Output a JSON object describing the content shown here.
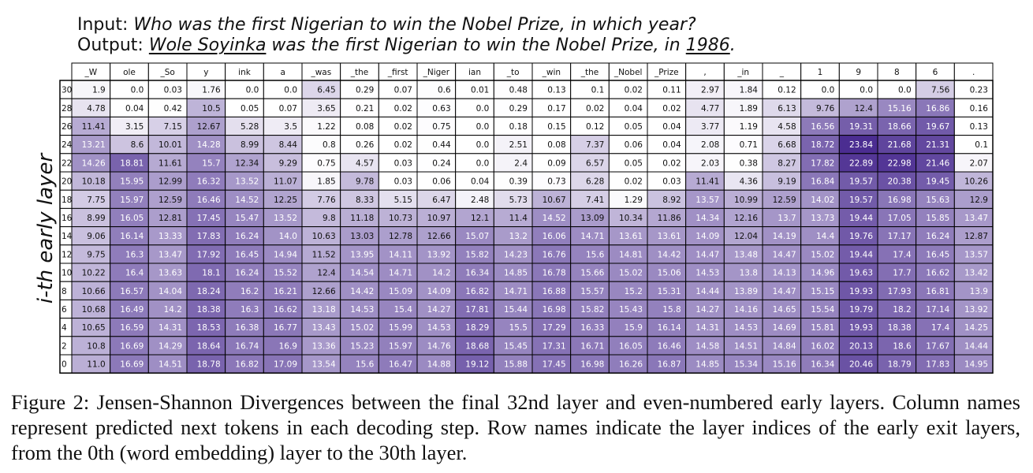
{
  "input": {
    "label": "Input:",
    "question": "Who was the first Nigerian to win the Nobel Prize, in which year?"
  },
  "output": {
    "label": "Output:",
    "name": "Wole Soyinka",
    "middle": "was the first Nigerian to win the Nobel Prize, in",
    "year": "1986",
    "end": "."
  },
  "ylabel": "i-th early layer",
  "caption": "Figure 2: Jensen-Shannon Divergences between the final 32nd layer and even-numbered early layers. Column names represent predicted next tokens in each decoding step. Row names indicate the layer indices of the early exit layers, from the 0th (word embedding) layer to the 30th layer.",
  "colors": {
    "low": "#ffffff",
    "high": "#4b2d91",
    "grid": "#000000"
  },
  "chart_data": {
    "type": "heatmap",
    "columns": [
      "_W",
      "ole",
      "_So",
      "y",
      "ink",
      "a",
      "_was",
      "_the",
      "_first",
      "_Niger",
      "ian",
      "_to",
      "_win",
      "_the",
      "_Nobel",
      "_Prize",
      ",",
      "_in",
      "_",
      "1",
      "9",
      "8",
      "6",
      "."
    ],
    "rows": [
      "30",
      "28",
      "26",
      "24",
      "22",
      "20",
      "18",
      "16",
      "14",
      "12",
      "10",
      "8",
      "6",
      "4",
      "2",
      "0"
    ],
    "values": [
      [
        "1.9",
        "0.0",
        "0.03",
        "1.76",
        "0.0",
        "0.0",
        "6.45",
        "0.29",
        "0.07",
        "0.6",
        "0.01",
        "0.48",
        "0.13",
        "0.1",
        "0.02",
        "0.11",
        "2.97",
        "1.84",
        "0.12",
        "0.0",
        "0.0",
        "0.0",
        "7.56",
        "0.23"
      ],
      [
        "4.78",
        "0.04",
        "0.42",
        "10.5",
        "0.05",
        "0.07",
        "3.65",
        "0.21",
        "0.02",
        "0.63",
        "0.0",
        "0.29",
        "0.17",
        "0.02",
        "0.04",
        "0.02",
        "4.77",
        "1.89",
        "6.13",
        "9.76",
        "12.4",
        "15.16",
        "16.86",
        "0.16"
      ],
      [
        "11.41",
        "3.15",
        "7.15",
        "12.67",
        "5.28",
        "3.5",
        "1.22",
        "0.08",
        "0.02",
        "0.75",
        "0.0",
        "0.18",
        "0.15",
        "0.12",
        "0.05",
        "0.04",
        "3.77",
        "1.19",
        "4.58",
        "16.56",
        "19.31",
        "18.66",
        "19.67",
        "0.13"
      ],
      [
        "13.21",
        "8.6",
        "10.01",
        "14.28",
        "8.99",
        "8.44",
        "0.8",
        "0.26",
        "0.02",
        "0.44",
        "0.0",
        "2.51",
        "0.08",
        "7.37",
        "0.06",
        "0.04",
        "2.08",
        "0.71",
        "6.68",
        "18.72",
        "23.84",
        "21.68",
        "21.31",
        "0.1"
      ],
      [
        "14.26",
        "18.81",
        "11.61",
        "15.7",
        "12.34",
        "9.29",
        "0.75",
        "4.57",
        "0.03",
        "0.24",
        "0.0",
        "2.4",
        "0.09",
        "6.57",
        "0.05",
        "0.02",
        "2.03",
        "0.38",
        "8.27",
        "17.82",
        "22.89",
        "22.98",
        "21.46",
        "2.07"
      ],
      [
        "10.18",
        "15.95",
        "12.99",
        "16.32",
        "13.52",
        "11.07",
        "1.85",
        "9.78",
        "0.03",
        "0.06",
        "0.04",
        "0.39",
        "0.73",
        "6.28",
        "0.02",
        "0.03",
        "11.41",
        "4.36",
        "9.19",
        "16.84",
        "19.57",
        "20.38",
        "19.45",
        "10.26"
      ],
      [
        "7.75",
        "15.97",
        "12.59",
        "16.46",
        "14.52",
        "12.25",
        "7.76",
        "8.33",
        "5.15",
        "6.47",
        "2.48",
        "5.73",
        "10.67",
        "7.41",
        "1.29",
        "8.92",
        "13.57",
        "10.99",
        "12.59",
        "14.02",
        "19.57",
        "16.98",
        "15.63",
        "12.9"
      ],
      [
        "8.99",
        "16.05",
        "12.81",
        "17.45",
        "15.47",
        "13.52",
        "9.8",
        "11.18",
        "10.73",
        "10.97",
        "12.1",
        "11.4",
        "14.52",
        "13.09",
        "10.34",
        "11.86",
        "14.34",
        "12.16",
        "13.7",
        "13.73",
        "19.44",
        "17.05",
        "15.85",
        "13.47"
      ],
      [
        "9.06",
        "16.14",
        "13.33",
        "17.83",
        "16.24",
        "14.0",
        "10.63",
        "13.03",
        "12.78",
        "12.66",
        "15.07",
        "13.2",
        "16.06",
        "14.71",
        "13.61",
        "13.61",
        "14.09",
        "12.04",
        "14.19",
        "14.4",
        "19.76",
        "17.17",
        "16.24",
        "12.87"
      ],
      [
        "9.75",
        "16.3",
        "13.47",
        "17.92",
        "16.45",
        "14.94",
        "11.52",
        "13.95",
        "14.11",
        "13.92",
        "15.82",
        "14.23",
        "16.76",
        "15.6",
        "14.81",
        "14.42",
        "14.47",
        "13.48",
        "14.47",
        "15.02",
        "19.44",
        "17.4",
        "16.45",
        "13.57"
      ],
      [
        "10.22",
        "16.4",
        "13.63",
        "18.1",
        "16.24",
        "15.52",
        "12.4",
        "14.54",
        "14.71",
        "14.2",
        "16.34",
        "14.85",
        "16.78",
        "15.66",
        "15.02",
        "15.06",
        "14.53",
        "13.8",
        "14.13",
        "14.96",
        "19.63",
        "17.7",
        "16.62",
        "13.42"
      ],
      [
        "10.66",
        "16.57",
        "14.04",
        "18.24",
        "16.2",
        "16.21",
        "12.66",
        "14.42",
        "15.09",
        "14.09",
        "16.82",
        "14.71",
        "16.88",
        "15.57",
        "15.2",
        "15.31",
        "14.44",
        "13.89",
        "14.47",
        "15.15",
        "19.93",
        "17.93",
        "16.81",
        "13.9"
      ],
      [
        "10.68",
        "16.49",
        "14.2",
        "18.38",
        "16.3",
        "16.62",
        "13.18",
        "14.53",
        "15.4",
        "14.27",
        "17.81",
        "15.44",
        "16.98",
        "15.82",
        "15.43",
        "15.8",
        "14.27",
        "14.16",
        "14.65",
        "15.54",
        "19.79",
        "18.2",
        "17.14",
        "13.92"
      ],
      [
        "10.65",
        "16.59",
        "14.31",
        "18.53",
        "16.38",
        "16.77",
        "13.43",
        "15.02",
        "15.99",
        "14.53",
        "18.29",
        "15.5",
        "17.29",
        "16.33",
        "15.9",
        "16.14",
        "14.31",
        "14.53",
        "14.69",
        "15.81",
        "19.93",
        "18.38",
        "17.4",
        "14.25"
      ],
      [
        "10.8",
        "16.69",
        "14.29",
        "18.64",
        "16.74",
        "16.9",
        "13.36",
        "15.23",
        "15.97",
        "14.76",
        "18.68",
        "15.45",
        "17.31",
        "16.71",
        "16.05",
        "16.46",
        "14.58",
        "14.51",
        "14.84",
        "16.02",
        "20.13",
        "18.6",
        "17.67",
        "14.44"
      ],
      [
        "11.0",
        "16.69",
        "14.51",
        "18.78",
        "16.82",
        "17.09",
        "13.54",
        "15.6",
        "16.47",
        "14.88",
        "19.12",
        "15.88",
        "17.45",
        "16.98",
        "16.26",
        "16.87",
        "14.85",
        "15.34",
        "15.16",
        "16.34",
        "20.46",
        "18.79",
        "17.83",
        "14.95"
      ]
    ],
    "vmin": 0,
    "vmax": 23.84
  }
}
